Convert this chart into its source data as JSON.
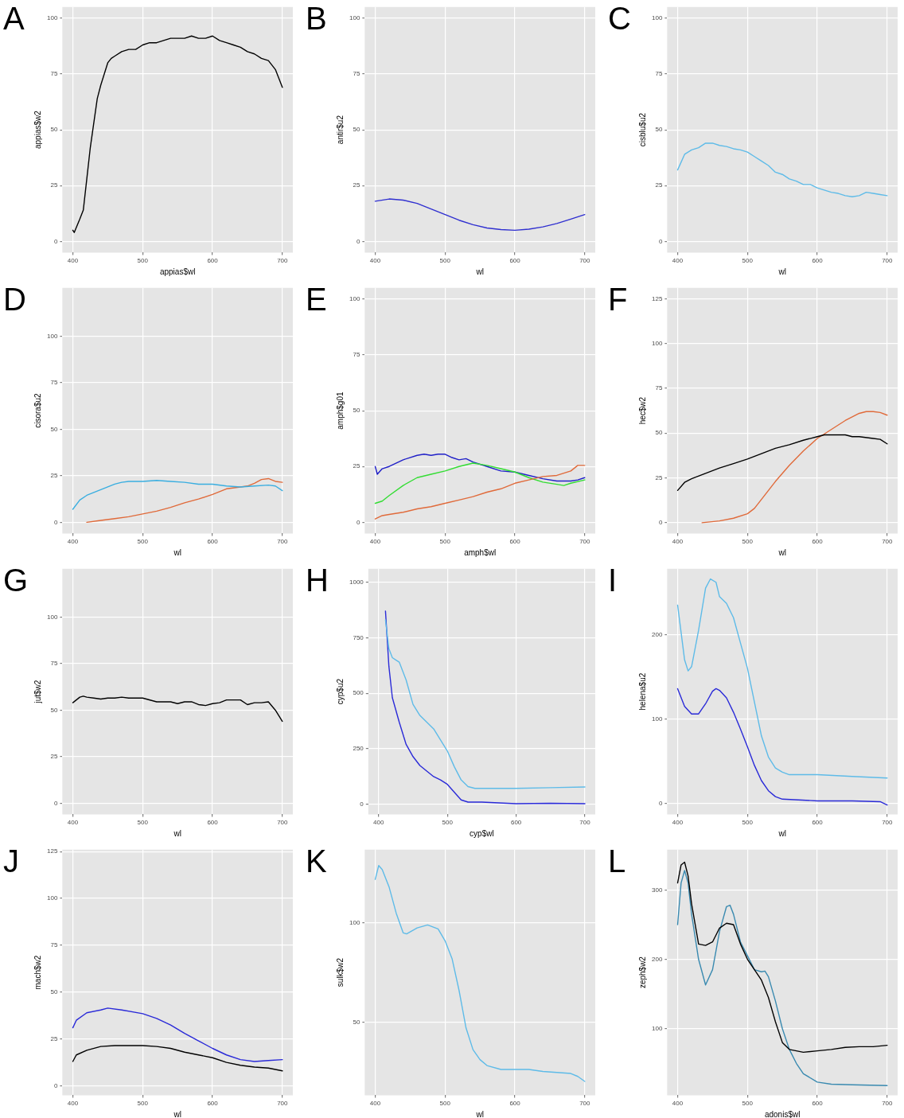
{
  "chart_data": [
    {
      "type": "line",
      "annotations": [
        "A"
      ],
      "xlabel": "appias$wl",
      "ylabel": "appias$w2",
      "xlim": [
        385,
        715
      ],
      "xticks": [
        400,
        500,
        600,
        700
      ],
      "ylim": [
        -5,
        105
      ],
      "yticks": [
        0,
        25,
        50,
        75,
        100
      ],
      "grid": true,
      "series": [
        {
          "color": "#000000",
          "x": [
            400,
            402,
            410,
            415,
            420,
            425,
            430,
            435,
            440,
            445,
            450,
            455,
            460,
            470,
            480,
            490,
            500,
            510,
            520,
            530,
            540,
            550,
            560,
            570,
            580,
            590,
            600,
            610,
            620,
            630,
            640,
            650,
            660,
            670,
            680,
            690,
            700
          ],
          "values": [
            5,
            4,
            10,
            14,
            28,
            42,
            53,
            64,
            70,
            75,
            80,
            82,
            83,
            85,
            86,
            86,
            88,
            89,
            89,
            90,
            91,
            91,
            91,
            92,
            91,
            91,
            92,
            90,
            89,
            88,
            87,
            85,
            84,
            82,
            81,
            77,
            69
          ]
        }
      ]
    },
    {
      "type": "line",
      "annotations": [
        "B"
      ],
      "xlabel": "wl",
      "ylabel": "antir$u2",
      "xlim": [
        385,
        715
      ],
      "xticks": [
        400,
        500,
        600,
        700
      ],
      "ylim": [
        -5,
        105
      ],
      "yticks": [
        0,
        25,
        50,
        75,
        100
      ],
      "grid": true,
      "series": [
        {
          "color": "#3030d0",
          "x": [
            400,
            420,
            440,
            460,
            480,
            500,
            520,
            540,
            560,
            580,
            600,
            620,
            640,
            660,
            680,
            700
          ],
          "values": [
            18,
            19,
            18.5,
            17,
            14.5,
            12,
            9.5,
            7.5,
            6,
            5.3,
            5,
            5.5,
            6.5,
            8,
            10,
            12
          ]
        }
      ]
    },
    {
      "type": "line",
      "annotations": [
        "C"
      ],
      "xlabel": "wl",
      "ylabel": "cisblu$u2",
      "xlim": [
        385,
        715
      ],
      "xticks": [
        400,
        500,
        600,
        700
      ],
      "ylim": [
        -5,
        105
      ],
      "yticks": [
        0,
        25,
        50,
        75,
        100
      ],
      "grid": true,
      "series": [
        {
          "color": "#5ebbe8",
          "x": [
            400,
            410,
            420,
            430,
            440,
            450,
            460,
            470,
            480,
            490,
            500,
            510,
            520,
            530,
            540,
            550,
            560,
            570,
            580,
            590,
            600,
            610,
            620,
            630,
            640,
            650,
            660,
            670,
            680,
            690,
            700
          ],
          "values": [
            32,
            39,
            41,
            42,
            44,
            44,
            43,
            42.5,
            41.5,
            41,
            40,
            38,
            36,
            34,
            31,
            30,
            28,
            27,
            25.5,
            25.5,
            24,
            23,
            22,
            21.5,
            20.5,
            20,
            20.5,
            22,
            21.5,
            21,
            20.5
          ]
        }
      ]
    },
    {
      "type": "line",
      "annotations": [
        "D"
      ],
      "xlabel": "wl",
      "ylabel": "cisora$u2",
      "xlim": [
        385,
        715
      ],
      "xticks": [
        400,
        500,
        600,
        700
      ],
      "ylim": [
        -6,
        126
      ],
      "yticks": [
        0,
        25,
        50,
        75,
        100
      ],
      "grid": true,
      "series": [
        {
          "color": "#3aaee0",
          "x": [
            400,
            410,
            420,
            430,
            440,
            450,
            460,
            470,
            480,
            500,
            520,
            540,
            560,
            580,
            600,
            620,
            640,
            660,
            680,
            690,
            700
          ],
          "values": [
            7,
            12,
            14.5,
            16,
            17.5,
            19,
            20.5,
            21.5,
            22,
            22,
            22.5,
            22,
            21.5,
            20.5,
            20.5,
            19.5,
            19,
            19.5,
            20,
            19.5,
            17
          ]
        },
        {
          "color": "#e06a3a",
          "x": [
            420,
            440,
            460,
            480,
            500,
            520,
            540,
            560,
            580,
            600,
            620,
            640,
            650,
            660,
            670,
            680,
            690,
            700
          ],
          "values": [
            0,
            1,
            2,
            3,
            4.5,
            6,
            8,
            10.5,
            12.5,
            15,
            18,
            19,
            19.5,
            21,
            23,
            23.5,
            22,
            21.5
          ]
        }
      ]
    },
    {
      "type": "line",
      "annotations": [
        "E"
      ],
      "xlabel": "amph$wl",
      "ylabel": "amph$g01",
      "xlim": [
        385,
        715
      ],
      "xticks": [
        400,
        500,
        600,
        700
      ],
      "ylim": [
        -5,
        105
      ],
      "yticks": [
        0,
        25,
        50,
        75,
        100
      ],
      "grid": true,
      "series": [
        {
          "color": "#e06a3a",
          "x": [
            400,
            410,
            420,
            440,
            460,
            480,
            500,
            520,
            540,
            560,
            580,
            600,
            620,
            640,
            660,
            680,
            690,
            700
          ],
          "values": [
            1.5,
            3,
            3.5,
            4.5,
            6,
            7,
            8.5,
            10,
            11.5,
            13.5,
            15,
            17.5,
            19,
            20.5,
            21,
            23,
            25.5,
            25.5
          ]
        },
        {
          "color": "#33dd33",
          "x": [
            400,
            410,
            420,
            440,
            460,
            480,
            500,
            520,
            540,
            560,
            580,
            600,
            620,
            640,
            660,
            670,
            680,
            700
          ],
          "values": [
            8.5,
            9.5,
            12,
            16.5,
            20,
            21.5,
            23,
            25,
            26.5,
            25.5,
            24,
            22.5,
            20,
            18,
            17,
            16.5,
            17.5,
            19
          ]
        },
        {
          "color": "#2020c8",
          "x": [
            400,
            403,
            410,
            420,
            440,
            460,
            470,
            480,
            490,
            500,
            510,
            520,
            530,
            540,
            560,
            580,
            600,
            620,
            640,
            660,
            680,
            690,
            700
          ],
          "values": [
            25,
            21.5,
            24,
            25,
            28,
            30,
            30.5,
            30,
            30.5,
            30.5,
            29,
            28,
            28.5,
            27,
            25,
            23,
            22.5,
            21,
            19.5,
            18.5,
            18.5,
            19,
            20
          ]
        }
      ]
    },
    {
      "type": "line",
      "annotations": [
        "F"
      ],
      "xlabel": "wl",
      "ylabel": "hec$w2",
      "xlim": [
        385,
        715
      ],
      "xticks": [
        400,
        500,
        600,
        700
      ],
      "ylim": [
        -6,
        131
      ],
      "yticks": [
        0,
        25,
        50,
        75,
        100,
        125
      ],
      "grid": true,
      "series": [
        {
          "color": "#000000",
          "x": [
            400,
            410,
            420,
            440,
            460,
            480,
            500,
            520,
            540,
            560,
            580,
            600,
            610,
            620,
            640,
            650,
            660,
            680,
            690,
            700
          ],
          "values": [
            18,
            22.5,
            24.5,
            27.5,
            30.5,
            33,
            35.5,
            38.5,
            41.5,
            43.5,
            46,
            48,
            49,
            49,
            49,
            48,
            48,
            47,
            46.5,
            44
          ]
        },
        {
          "color": "#e06a3a",
          "x": [
            435,
            460,
            480,
            500,
            510,
            520,
            530,
            540,
            560,
            580,
            600,
            620,
            640,
            660,
            670,
            680,
            690,
            700
          ],
          "values": [
            0,
            1,
            2.5,
            5,
            8,
            13,
            18,
            23,
            32,
            40,
            47,
            52,
            57,
            61,
            62,
            62,
            61.5,
            60
          ]
        }
      ]
    },
    {
      "type": "line",
      "annotations": [
        "G"
      ],
      "xlabel": "wl",
      "ylabel": "jut$w2",
      "xlim": [
        385,
        715
      ],
      "xticks": [
        400,
        500,
        600,
        700
      ],
      "ylim": [
        -6,
        126
      ],
      "yticks": [
        0,
        25,
        50,
        75,
        100
      ],
      "grid": true,
      "series": [
        {
          "color": "#000000",
          "x": [
            400,
            410,
            415,
            420,
            430,
            440,
            450,
            460,
            470,
            480,
            500,
            520,
            540,
            550,
            560,
            570,
            580,
            590,
            600,
            610,
            620,
            640,
            650,
            660,
            670,
            680,
            690,
            700
          ],
          "values": [
            54,
            57,
            57.5,
            57,
            56.5,
            56,
            56.5,
            56.5,
            57,
            56.5,
            56.5,
            54.5,
            54.5,
            53.5,
            54.5,
            54.5,
            53,
            52.5,
            53.5,
            54,
            55.5,
            55.5,
            53,
            54,
            54,
            54.5,
            50,
            44
          ]
        }
      ]
    },
    {
      "type": "line",
      "annotations": [
        "H"
      ],
      "xlabel": "cyp$wl",
      "ylabel": "cyp$u2",
      "xlim": [
        385,
        715
      ],
      "xticks": [
        400,
        500,
        600,
        700
      ],
      "ylim": [
        -45,
        1060
      ],
      "yticks": [
        0,
        250,
        500,
        750,
        1000
      ],
      "grid": true,
      "series": [
        {
          "color": "#5ebbe8",
          "x": [
            410,
            415,
            420,
            425,
            430,
            440,
            450,
            460,
            470,
            480,
            490,
            500,
            510,
            520,
            530,
            540,
            560,
            600,
            650,
            700
          ],
          "values": [
            830,
            700,
            660,
            650,
            640,
            560,
            450,
            400,
            370,
            340,
            290,
            240,
            170,
            110,
            80,
            72,
            72,
            72,
            75,
            78
          ]
        },
        {
          "color": "#2a2ad8",
          "x": [
            410,
            415,
            420,
            430,
            440,
            450,
            460,
            470,
            480,
            490,
            500,
            510,
            520,
            530,
            550,
            600,
            650,
            700
          ],
          "values": [
            870,
            620,
            480,
            370,
            270,
            215,
            175,
            150,
            125,
            110,
            90,
            55,
            20,
            10,
            10,
            3,
            5,
            3
          ]
        }
      ]
    },
    {
      "type": "line",
      "annotations": [
        "I"
      ],
      "xlabel": "wl",
      "ylabel": "helena$u2",
      "xlim": [
        385,
        715
      ],
      "xticks": [
        400,
        500,
        600,
        700
      ],
      "ylim": [
        -13,
        278
      ],
      "yticks": [
        0,
        100,
        200
      ],
      "grid": true,
      "series": [
        {
          "color": "#5ebbe8",
          "x": [
            400,
            410,
            415,
            420,
            430,
            440,
            447,
            455,
            460,
            470,
            480,
            490,
            500,
            510,
            520,
            530,
            540,
            550,
            560,
            600,
            650,
            700
          ],
          "values": [
            235,
            170,
            157,
            162,
            205,
            255,
            266,
            262,
            245,
            237,
            220,
            190,
            160,
            120,
            80,
            55,
            42,
            37,
            34,
            34,
            32,
            30
          ]
        },
        {
          "color": "#2a2ad8",
          "x": [
            400,
            410,
            420,
            430,
            440,
            450,
            455,
            460,
            470,
            480,
            490,
            500,
            510,
            520,
            530,
            540,
            550,
            600,
            650,
            690,
            700
          ],
          "values": [
            136,
            115,
            106,
            106,
            118,
            133,
            136,
            134,
            125,
            108,
            88,
            67,
            45,
            27,
            15,
            8,
            5,
            3,
            3,
            2,
            -2
          ]
        }
      ]
    },
    {
      "type": "line",
      "annotations": [
        "J"
      ],
      "xlabel": "wl",
      "ylabel": "mach$w2",
      "xlim": [
        385,
        715
      ],
      "xticks": [
        400,
        500,
        600,
        700
      ],
      "ylim": [
        -5,
        126
      ],
      "yticks": [
        0,
        25,
        50,
        75,
        100,
        125
      ],
      "grid": true,
      "series": [
        {
          "color": "#000000",
          "x": [
            400,
            405,
            420,
            440,
            460,
            500,
            520,
            540,
            560,
            580,
            600,
            620,
            640,
            660,
            680,
            700
          ],
          "values": [
            13,
            16.5,
            19,
            21,
            21.5,
            21.5,
            21,
            20,
            18,
            16.5,
            15,
            12.5,
            11,
            10,
            9.5,
            8
          ]
        },
        {
          "color": "#2a2ad8",
          "x": [
            400,
            405,
            420,
            440,
            450,
            470,
            500,
            520,
            540,
            560,
            580,
            600,
            620,
            640,
            660,
            680,
            700
          ],
          "values": [
            31,
            35,
            39,
            40.5,
            41.5,
            40.5,
            38.5,
            36,
            32.5,
            28,
            24,
            20,
            16.5,
            14,
            13,
            13.5,
            14
          ]
        }
      ]
    },
    {
      "type": "line",
      "annotations": [
        "K"
      ],
      "xlabel": "wl",
      "ylabel": "sulk$w2",
      "xlim": [
        385,
        715
      ],
      "xticks": [
        400,
        500,
        600,
        700
      ],
      "ylim": [
        13,
        137
      ],
      "yticks": [
        50,
        100
      ],
      "grid": true,
      "series": [
        {
          "color": "#5ebbe8",
          "x": [
            400,
            405,
            410,
            420,
            430,
            440,
            445,
            460,
            475,
            490,
            500,
            510,
            520,
            530,
            540,
            550,
            560,
            580,
            600,
            620,
            640,
            660,
            680,
            690,
            700
          ],
          "values": [
            122,
            129,
            127,
            118,
            105,
            95,
            94.5,
            97.5,
            99,
            97,
            91,
            82,
            66,
            47,
            36,
            31,
            28,
            26,
            26,
            26,
            25,
            24.5,
            24,
            22.5,
            20
          ]
        }
      ]
    },
    {
      "type": "line",
      "annotations": [
        "L"
      ],
      "xlabel": "adonis$wl",
      "ylabel": "zeph$w2",
      "xlim": [
        385,
        715
      ],
      "xticks": [
        400,
        500,
        600,
        700
      ],
      "ylim": [
        4,
        358
      ],
      "yticks": [
        100,
        200,
        300
      ],
      "grid": true,
      "series": [
        {
          "color": "#000000",
          "x": [
            400,
            405,
            410,
            415,
            420,
            430,
            440,
            450,
            460,
            470,
            480,
            490,
            500,
            510,
            520,
            530,
            540,
            550,
            560,
            580,
            600,
            620,
            640,
            660,
            680,
            700
          ],
          "values": [
            310,
            336,
            340,
            320,
            280,
            222,
            220,
            225,
            245,
            252,
            250,
            222,
            200,
            185,
            170,
            145,
            110,
            80,
            70,
            66,
            68,
            70,
            73,
            74,
            74,
            76
          ]
        },
        {
          "color": "#3a8ab0",
          "x": [
            400,
            405,
            410,
            415,
            420,
            430,
            440,
            450,
            460,
            470,
            475,
            480,
            490,
            500,
            510,
            520,
            525,
            530,
            540,
            550,
            560,
            570,
            580,
            600,
            620,
            650,
            700
          ],
          "values": [
            250,
            310,
            328,
            310,
            265,
            200,
            163,
            185,
            240,
            276,
            278,
            265,
            225,
            205,
            185,
            182,
            183,
            175,
            140,
            100,
            70,
            50,
            35,
            23,
            20,
            19,
            18
          ]
        }
      ]
    }
  ]
}
